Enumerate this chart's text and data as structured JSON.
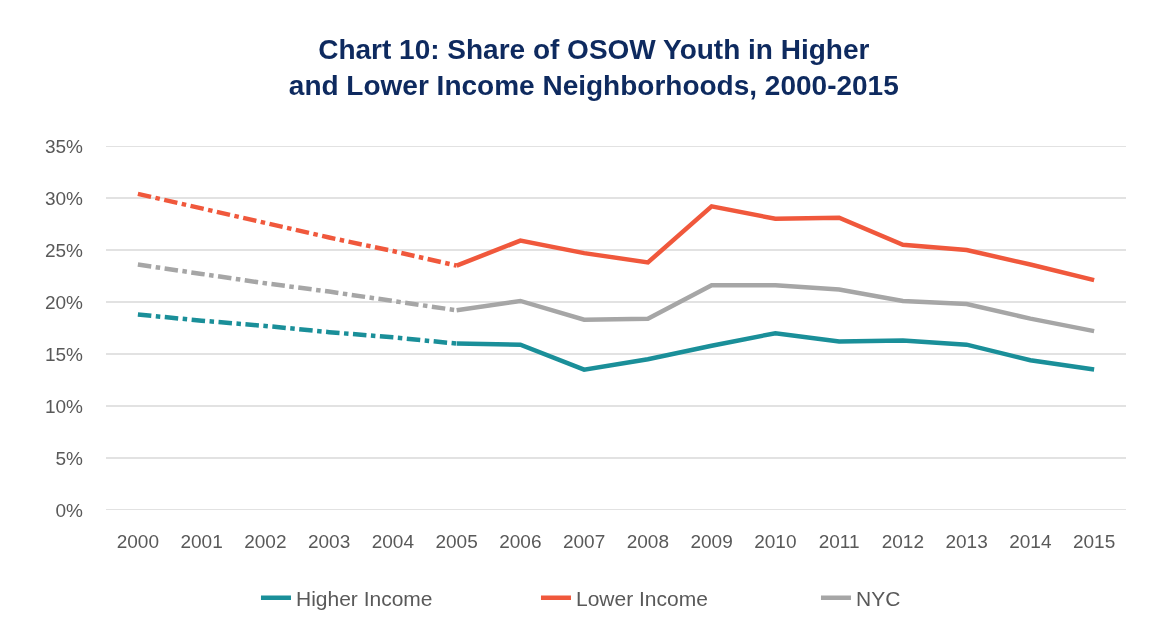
{
  "chart_data": {
    "type": "line",
    "title": "Chart 10: Share of OSOW Youth in Higher\nand Lower Income Neighborhoods, 2000-2015",
    "categories": [
      "2000",
      "2001",
      "2002",
      "2003",
      "2004",
      "2005",
      "2006",
      "2007",
      "2008",
      "2009",
      "2010",
      "2011",
      "2012",
      "2013",
      "2014",
      "2015"
    ],
    "series": [
      {
        "name": "Higher Income",
        "color": "#1a8f99",
        "values": [
          null,
          null,
          null,
          null,
          null,
          16.0,
          15.9,
          13.5,
          14.5,
          15.8,
          17.0,
          16.2,
          16.3,
          15.9,
          14.4,
          13.5
        ]
      },
      {
        "name": "Lower Income",
        "color": "#f0583c",
        "values": [
          null,
          null,
          null,
          null,
          null,
          23.5,
          25.9,
          24.7,
          23.8,
          29.2,
          28.0,
          28.1,
          25.5,
          25.0,
          23.6,
          22.1
        ]
      },
      {
        "name": "NYC",
        "color": "#a6a6a6",
        "values": [
          null,
          null,
          null,
          null,
          null,
          19.2,
          20.1,
          18.3,
          18.4,
          21.6,
          21.6,
          21.2,
          20.1,
          19.8,
          18.4,
          17.2
        ]
      },
      {
        "color": "#1a8f99",
        "line_style": "dashed",
        "values": [
          18.8,
          18.2,
          17.7,
          17.1,
          16.6,
          16.0,
          null,
          null,
          null,
          null,
          null,
          null,
          null,
          null,
          null,
          null
        ]
      },
      {
        "color": "#f0583c",
        "line_style": "dashed",
        "values": [
          30.4,
          29.0,
          27.6,
          26.2,
          24.9,
          23.5,
          null,
          null,
          null,
          null,
          null,
          null,
          null,
          null,
          null,
          null
        ]
      },
      {
        "color": "#a6a6a6",
        "line_style": "dashed",
        "values": [
          23.6,
          22.7,
          21.8,
          21.0,
          20.1,
          19.2,
          null,
          null,
          null,
          null,
          null,
          null,
          null,
          null,
          null,
          null
        ]
      }
    ],
    "ylim": [
      0,
      35
    ],
    "yticks": [
      {
        "value": 0,
        "label": "0%"
      },
      {
        "value": 5,
        "label": "5%"
      },
      {
        "value": 10,
        "label": "10%"
      },
      {
        "value": 15,
        "label": "15%"
      },
      {
        "value": 20,
        "label": "20%"
      },
      {
        "value": 25,
        "label": "25%"
      },
      {
        "value": 30,
        "label": "30%"
      },
      {
        "value": 35,
        "label": "35%"
      }
    ],
    "grid": "y",
    "legend": "bottom",
    "line_style": "solid"
  }
}
